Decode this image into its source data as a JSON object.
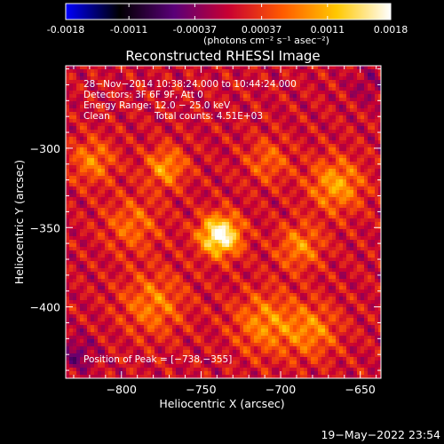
{
  "colorbar": {
    "ticks": [
      "-0.0018",
      "-0.0011",
      "-0.00037",
      "0.00037",
      "0.0011",
      "0.0018"
    ],
    "tick_values": [
      -0.0018,
      -0.0011,
      -0.00037,
      0.00037,
      0.0011,
      0.0018
    ],
    "range": [
      -0.0018,
      0.0018
    ],
    "unit_label": "(photons cm⁻² s⁻¹ asec⁻²)",
    "colormap": [
      "#0000ff",
      "#000000",
      "#5a0078",
      "#c80032",
      "#ff5a00",
      "#ffc800",
      "#ffffff"
    ]
  },
  "chart_data": {
    "type": "heatmap",
    "title": "Reconstructed RHESSI Image",
    "xlabel": "Heliocentric X (arcsec)",
    "ylabel": "Heliocentric Y (arcsec)",
    "xlim": [
      -835,
      -637
    ],
    "ylim": [
      -445,
      -248
    ],
    "x_ticks": [
      -800,
      -750,
      -700,
      -650
    ],
    "x_tick_labels": [
      "−800",
      "−750",
      "−700",
      "−650"
    ],
    "y_ticks": [
      -300,
      -350,
      -400
    ],
    "y_tick_labels": [
      "−300",
      "−350",
      "−400"
    ],
    "peak": {
      "x": -738,
      "y": -355
    },
    "blobs": [
      {
        "x": -738,
        "y": -355,
        "sigma": 9,
        "amp": 0.0018
      },
      {
        "x": -772,
        "y": -312,
        "sigma": 9,
        "amp": 0.00085
      },
      {
        "x": -818,
        "y": -308,
        "sigma": 10,
        "amp": 0.0007
      },
      {
        "x": -665,
        "y": -323,
        "sigma": 12,
        "amp": 0.0009
      },
      {
        "x": -688,
        "y": -362,
        "sigma": 10,
        "amp": 0.00075
      },
      {
        "x": -780,
        "y": -398,
        "sigma": 14,
        "amp": 0.0007
      },
      {
        "x": -710,
        "y": -410,
        "sigma": 14,
        "amp": 0.00075
      },
      {
        "x": -680,
        "y": -415,
        "sigma": 12,
        "amp": 0.0007
      },
      {
        "x": -793,
        "y": -348,
        "sigma": 12,
        "amp": 0.0006
      },
      {
        "x": -708,
        "y": -308,
        "sigma": 10,
        "amp": 0.00055
      },
      {
        "x": -828,
        "y": -430,
        "sigma": 8,
        "amp": -0.0005
      },
      {
        "x": -645,
        "y": -260,
        "sigma": 8,
        "amp": -0.0003
      }
    ],
    "annotations": {
      "line1": "28−Nov−2014 10:38:24.000 to 10:44:24.000",
      "line2": "Detectors: 3F 6F 9F, Att 0",
      "line3": "Energy Range: 12.0 − 25.0 keV",
      "line4a": "Clean",
      "line4b": "Total counts: 4.51E+03",
      "peak_label": "Position of Peak = [−738,−355]"
    }
  },
  "footer": {
    "timestamp": "19−May−2022 23:54"
  }
}
